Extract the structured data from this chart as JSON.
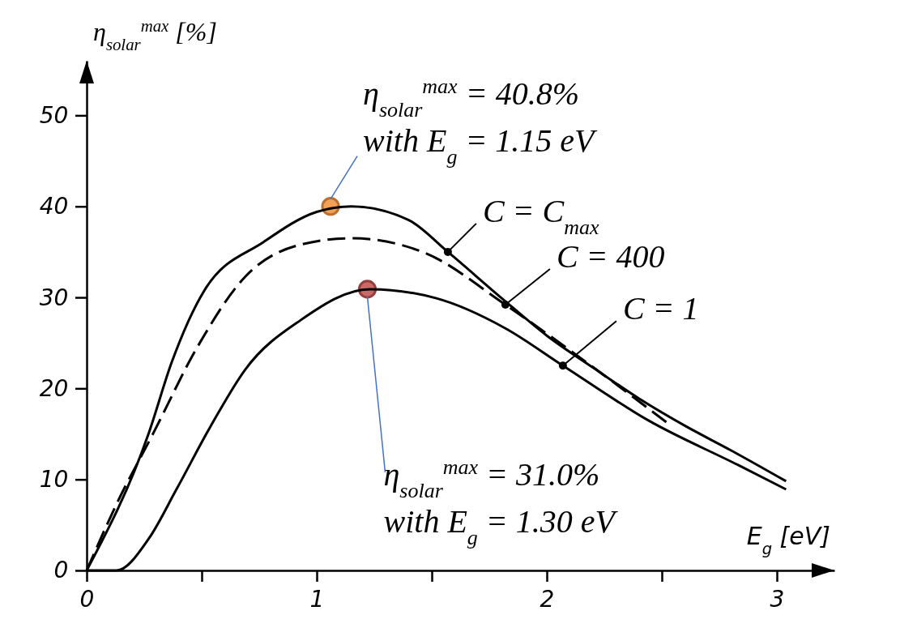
{
  "chart_data": {
    "type": "line",
    "xlabel": "E$_{g}$ [eV]",
    "ylabel": "η$_{solar}$$^{max}$ [%]",
    "xlim": [
      0,
      3.25
    ],
    "ylim": [
      0,
      56
    ],
    "xticks": [
      0,
      {
        "value": 0.5,
        "label": null
      },
      1,
      {
        "value": 1.5,
        "label": null
      },
      2,
      {
        "value": 2.5,
        "label": null
      },
      3
    ],
    "yticks": [
      0,
      10,
      20,
      30,
      40,
      50
    ],
    "series": [
      {
        "name": "C = C$_{max}$",
        "color": "#000000",
        "line_style": "solid",
        "marker": "none",
        "x": [
          0,
          0.27,
          0.37,
          0.51,
          0.77,
          1,
          1.15,
          1.4,
          1.57,
          1.8,
          2,
          2.2,
          2.4,
          2.6,
          2.8,
          3.04
        ],
        "values": [
          0,
          15.1,
          22.9,
          30.7,
          36.1,
          39.4,
          40,
          38.5,
          35,
          30,
          25.8,
          22.3,
          18.9,
          15.9,
          13.2,
          9.8
        ]
      },
      {
        "name": "C = 400",
        "color": "#000000",
        "line_style": "dashed",
        "marker": "none",
        "x": [
          0,
          0.13,
          0.29,
          0.48,
          0.69,
          0.93,
          1.15,
          1.46,
          1.82,
          2.1,
          2.54
        ],
        "values": [
          0,
          7.3,
          15.1,
          24.5,
          32.3,
          35.8,
          36.5,
          35,
          29.2,
          24.2,
          15.9
        ]
      },
      {
        "name": "C = 1",
        "color": "#000000",
        "line_style": "solid",
        "marker": "none",
        "x": [
          0,
          0.13,
          0.27,
          0.39,
          0.54,
          0.69,
          0.93,
          1.23,
          1.52,
          1.82,
          2.07,
          2.44,
          2.83,
          3.04
        ],
        "values": [
          0,
          0,
          3.5,
          8.9,
          15.9,
          22.1,
          27.5,
          30.9,
          29.9,
          26.6,
          22.5,
          16.5,
          11.6,
          8.9
        ]
      },
      {
        "type": "scatter",
        "marker": "circle",
        "x": [
          1.06,
          1.22
        ],
        "values": [
          40,
          30.9
        ],
        "colors": [
          "#f0913a",
          "#c0504d"
        ]
      }
    ],
    "annotations": [
      {
        "text": "η$_{solar}$$^{max}$ = 40.8%\nwith E$_{g}$ = 1.15 eV",
        "x": 1.06,
        "y": 40
      },
      {
        "text": "η$_{solar}$$^{max}$ = 31.0%\nwith E$_{g}$ = 1.30 eV",
        "x": 1.22,
        "y": 30.9
      }
    ]
  }
}
